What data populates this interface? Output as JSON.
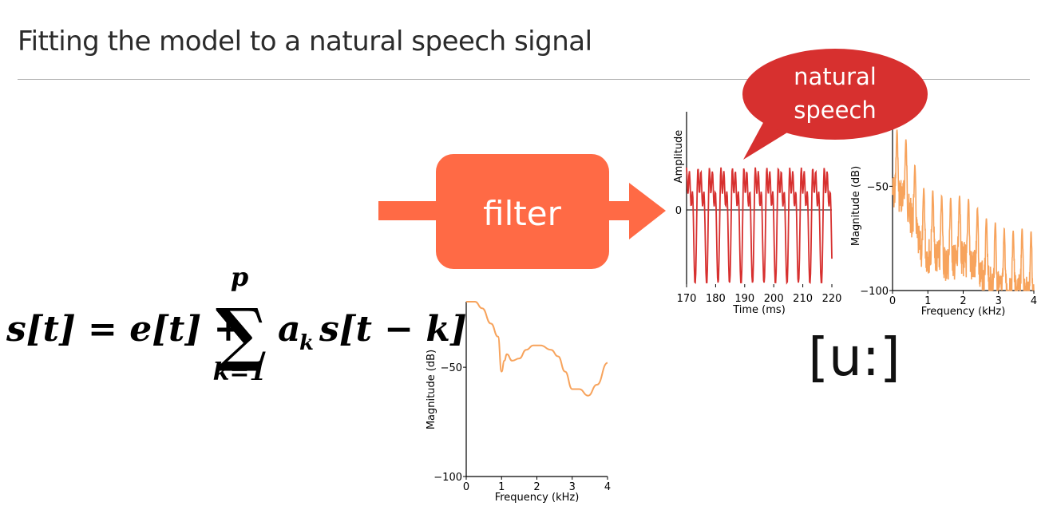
{
  "slide": {
    "title": "Fitting the model to a natural speech signal"
  },
  "filter_block": {
    "label": "filter",
    "fill_color": "#ff6a45"
  },
  "callout": {
    "line1": "natural",
    "line2": "speech",
    "fill_color": "#d7302f"
  },
  "equation": {
    "lhs": "s[t] = e[t] +",
    "sum_upper": "p",
    "sum_lower": "k=1",
    "sum_symbol": "∑",
    "term": "a",
    "term_sub": "k",
    "rest": "s[t − k]"
  },
  "phoneme": {
    "label": "[u:]"
  },
  "chart_data": [
    {
      "id": "waveform",
      "type": "line",
      "xlabel": "Time (ms)",
      "ylabel": "Amplitude",
      "xlim": [
        170,
        220
      ],
      "x_ticks": [
        170,
        180,
        190,
        200,
        210,
        220
      ],
      "y_ticks": [
        0
      ],
      "series": [
        {
          "color": "#d7302f",
          "period_ms": 3.95,
          "harmonics": [
            {
              "n": 1,
              "amp": 0.55,
              "phase": 0.0
            },
            {
              "n": 2,
              "amp": 0.32,
              "phase": 1.1
            },
            {
              "n": 3,
              "amp": 0.22,
              "phase": 2.3
            },
            {
              "n": 4,
              "amp": 0.08,
              "phase": 0.6
            }
          ],
          "samples_per_ms": 6
        }
      ]
    },
    {
      "id": "speech-spectrum",
      "type": "line",
      "xlabel": "Frequency (kHz)",
      "ylabel": "Magnitude (dB)",
      "xlim": [
        0,
        4
      ],
      "ylim": [
        -100,
        -20
      ],
      "x_ticks": [
        0,
        1,
        2,
        3,
        4
      ],
      "y_ticks": [
        -50,
        -100
      ],
      "series": [
        {
          "color": "#f7a35c",
          "harmonic_spacing_khz": 0.253,
          "envelope": [
            [
              0,
              -22
            ],
            [
              0.3,
              -24
            ],
            [
              0.55,
              -35
            ],
            [
              0.8,
              -50
            ],
            [
              1.0,
              -52
            ],
            [
              1.2,
              -52
            ],
            [
              1.5,
              -56
            ],
            [
              1.8,
              -55
            ],
            [
              2.0,
              -54
            ],
            [
              2.3,
              -58
            ],
            [
              2.6,
              -65
            ],
            [
              3.0,
              -68
            ],
            [
              3.3,
              -72
            ],
            [
              3.6,
              -70
            ],
            [
              4.0,
              -72
            ]
          ],
          "valley_depth_db": 40
        }
      ]
    },
    {
      "id": "filter-response",
      "type": "line",
      "xlabel": "Frequency (kHz)",
      "ylabel": "Magnitude (dB)",
      "xlim": [
        0,
        4
      ],
      "ylim": [
        -100,
        -20
      ],
      "x_ticks": [
        0,
        1,
        2,
        3,
        4
      ],
      "y_ticks": [
        -50,
        -100
      ],
      "series": [
        {
          "color": "#f7a35c",
          "points": [
            [
              0,
              -20
            ],
            [
              0.25,
              -20
            ],
            [
              0.45,
              -23
            ],
            [
              0.7,
              -30
            ],
            [
              0.9,
              -36
            ],
            [
              1.0,
              -52
            ],
            [
              1.08,
              -47
            ],
            [
              1.15,
              -44
            ],
            [
              1.3,
              -47
            ],
            [
              1.5,
              -46
            ],
            [
              1.7,
              -42
            ],
            [
              1.9,
              -40
            ],
            [
              2.1,
              -40
            ],
            [
              2.4,
              -42
            ],
            [
              2.6,
              -45
            ],
            [
              2.8,
              -52
            ],
            [
              3.0,
              -60
            ],
            [
              3.2,
              -60
            ],
            [
              3.45,
              -63
            ],
            [
              3.7,
              -58
            ],
            [
              4.0,
              -48
            ]
          ]
        }
      ]
    }
  ]
}
